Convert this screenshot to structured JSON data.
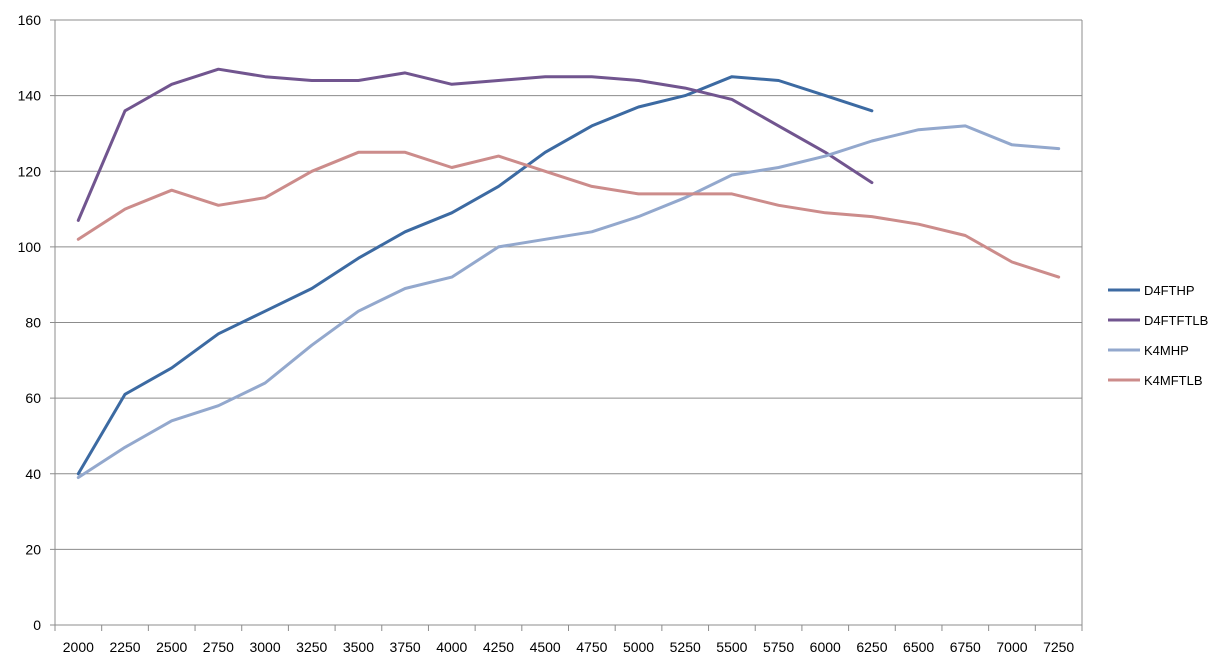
{
  "chart_data": {
    "type": "line",
    "title": "",
    "xlabel": "",
    "ylabel": "",
    "categories": [
      "2000",
      "2250",
      "2500",
      "2750",
      "3000",
      "3250",
      "3500",
      "3750",
      "4000",
      "4250",
      "4500",
      "4750",
      "5000",
      "5250",
      "5500",
      "5750",
      "6000",
      "6250",
      "6500",
      "6750",
      "7000",
      "7250"
    ],
    "ylim": [
      0,
      160
    ],
    "yticks": [
      0,
      20,
      40,
      60,
      80,
      100,
      120,
      140,
      160
    ],
    "grid": true,
    "legend_position": "right",
    "series": [
      {
        "name": "D4FTHP",
        "color": "#3c6aa2",
        "values": [
          40,
          61,
          68,
          77,
          83,
          89,
          97,
          104,
          109,
          116,
          125,
          132,
          137,
          140,
          145,
          144,
          140,
          136,
          null,
          null,
          null,
          null
        ]
      },
      {
        "name": "D4FTFTLB",
        "color": "#71558f",
        "values": [
          107,
          136,
          143,
          147,
          145,
          144,
          144,
          146,
          143,
          144,
          145,
          145,
          144,
          142,
          139,
          132,
          125,
          117,
          null,
          null,
          null,
          null
        ]
      },
      {
        "name": "K4MHP",
        "color": "#93a8cd",
        "values": [
          39,
          47,
          54,
          58,
          64,
          74,
          83,
          89,
          92,
          100,
          102,
          104,
          108,
          113,
          119,
          121,
          124,
          128,
          131,
          132,
          127,
          126
        ]
      },
      {
        "name": "K4MFTLB",
        "color": "#cc8c8b",
        "values": [
          102,
          110,
          115,
          111,
          113,
          120,
          125,
          125,
          121,
          124,
          120,
          116,
          114,
          114,
          114,
          111,
          109,
          108,
          106,
          103,
          96,
          92
        ]
      }
    ]
  }
}
